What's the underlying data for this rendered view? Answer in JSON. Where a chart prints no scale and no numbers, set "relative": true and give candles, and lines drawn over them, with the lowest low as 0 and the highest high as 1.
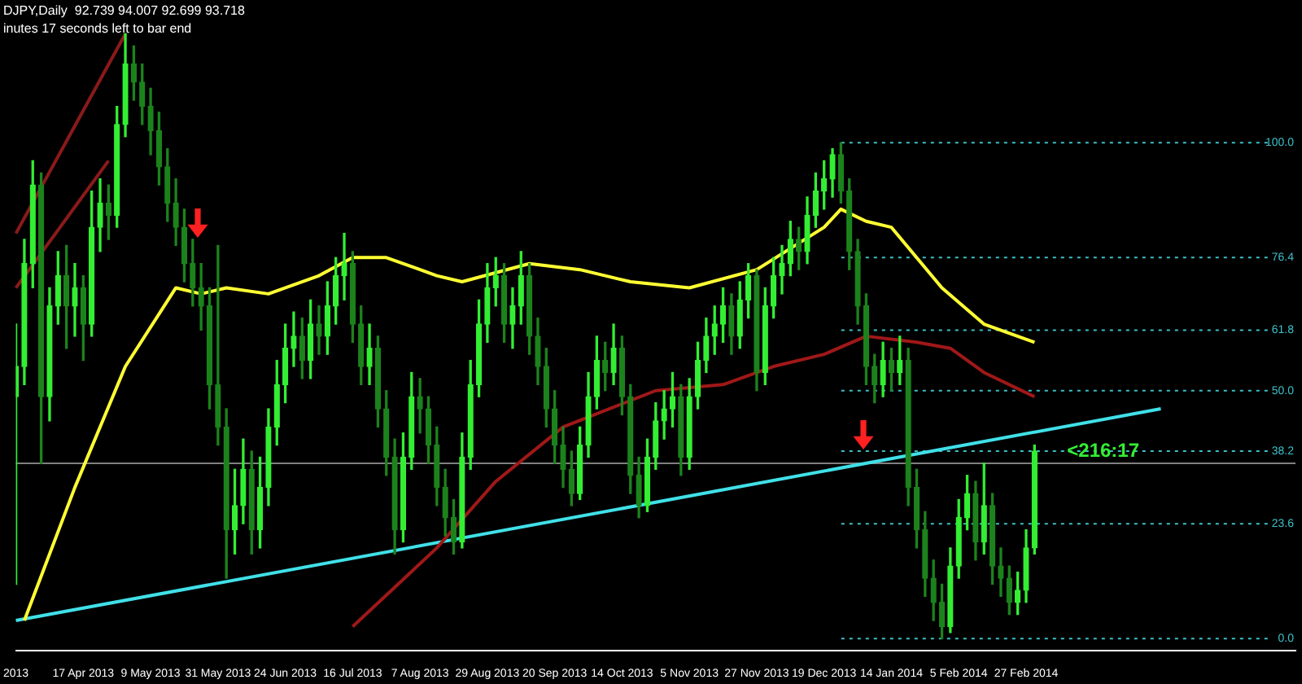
{
  "chart_data": {
    "type": "candlestick",
    "title": "DJPY,Daily  92.739 94.007 92.699 93.718",
    "relative": true,
    "colors": [
      "#33ee33",
      "#33ee33",
      "#33ee33",
      "#1c831c",
      "#33ee33",
      "#33ee33",
      "#1c831c",
      "#33ee33",
      "#1c831c",
      "#33ee33",
      "#33ee33",
      "#1c831c",
      "#33ee33",
      "#33ee33",
      "#1c831c",
      "#1c831c",
      "#1c831c",
      "#1c831c",
      "#1c831c",
      "#1c831c",
      "#1c831c",
      "#1c831c",
      "#1c831c",
      "#1c831c",
      "#1c831c",
      "#1c831c",
      "#33ee33",
      "#33ee33",
      "#1c831c",
      "#33ee33",
      "#33ee33",
      "#33ee33",
      "#33ee33",
      "#33ee33",
      "#1c831c",
      "#33ee33",
      "#1c831c",
      "#33ee33",
      "#33ee33",
      "#33ee33",
      "#1c831c",
      "#1c831c",
      "#33ee33",
      "#1c831c",
      "#1c831c",
      "#1c831c",
      "#33ee33",
      "#33ee33",
      "#1c831c",
      "#1c831c",
      "#1c831c",
      "#1c831c",
      "#1c831c",
      "#33ee33",
      "#33ee33",
      "#33ee33",
      "#33ee33",
      "#33ee33",
      "#1c831c",
      "#33ee33",
      "#33ee33",
      "#1c831c",
      "#1c831c",
      "#1c831c",
      "#1c831c",
      "#1c831c",
      "#1c831c",
      "#33ee33",
      "#33ee33",
      "#33ee33",
      "#1c831c",
      "#33ee33",
      "#1c831c",
      "#1c831c",
      "#1c831c",
      "#33ee33",
      "#33ee33",
      "#33ee33",
      "#33ee33",
      "#1c831c",
      "#33ee33",
      "#33ee33",
      "#33ee33",
      "#33ee33",
      "#33ee33",
      "#1c831c",
      "#33ee33",
      "#33ee33",
      "#1c831c",
      "#33ee33",
      "#33ee33",
      "#33ee33",
      "#33ee33",
      "#1c831c",
      "#33ee33",
      "#33ee33",
      "#33ee33",
      "#33ee33",
      "#1c831c",
      "#1c831c",
      "#1c831c",
      "#1c831c",
      "#1c831c",
      "#33ee33",
      "#1c831c",
      "#33ee33",
      "#1c831c",
      "#1c831c",
      "#1c831c",
      "#1c831c",
      "#1c831c",
      "#33ee33",
      "#33ee33",
      "#33ee33",
      "#1c831c",
      "#33ee33",
      "#1c831c",
      "#1c831c",
      "#1c831c",
      "#33ee33",
      "#33ee33",
      "#33ee33",
      null,
      null,
      null,
      null,
      null,
      null,
      null,
      null,
      null,
      null,
      null,
      null,
      null,
      null,
      null,
      null,
      null,
      null,
      null,
      null,
      null,
      null,
      null,
      null,
      null,
      null,
      null,
      null,
      null,
      null,
      null
    ],
    "annotations": [
      "inutes 17 seconds left to bar end",
      "<216:17",
      "100.0",
      "76.4",
      "61.8",
      "50.0",
      "38.2",
      "23.6",
      "0.0"
    ],
    "categories": [
      "2013",
      null,
      null,
      null,
      null,
      null,
      null,
      null,
      "17 Apr 2013",
      null,
      null,
      null,
      null,
      null,
      null,
      null,
      "9 May 2013",
      null,
      null,
      null,
      null,
      null,
      null,
      null,
      "31 May 2013",
      null,
      null,
      null,
      null,
      null,
      null,
      null,
      "24 Jun 2013",
      null,
      null,
      null,
      null,
      null,
      null,
      null,
      "16 Jul 2013",
      null,
      null,
      null,
      null,
      null,
      null,
      null,
      "7 Aug 2013",
      null,
      null,
      null,
      null,
      null,
      null,
      null,
      "29 Aug 2013",
      null,
      null,
      null,
      null,
      null,
      null,
      null,
      "20 Sep 2013",
      null,
      null,
      null,
      null,
      null,
      null,
      null,
      "14 Oct 2013",
      null,
      null,
      null,
      null,
      null,
      null,
      null,
      "5 Nov 2013",
      null,
      null,
      null,
      null,
      null,
      null,
      null,
      "27 Nov 2013",
      null,
      null,
      null,
      null,
      null,
      null,
      null,
      "19 Dec 2013",
      null,
      null,
      null,
      null,
      null,
      null,
      null,
      "14 Jan 2014",
      null,
      null,
      null,
      null,
      null,
      null,
      null,
      "5 Feb 2014",
      null,
      null,
      null,
      null,
      null,
      null,
      null,
      "27 Feb 2014",
      null,
      null,
      null,
      null,
      null,
      null,
      null,
      null,
      null,
      null,
      null,
      null,
      null,
      null,
      null,
      null,
      null,
      null,
      null,
      null,
      null,
      null,
      null,
      null,
      null,
      null,
      null,
      null,
      null,
      null,
      null,
      null
    ],
    "ohlc": [
      [
        0.4,
        0.52,
        0.09,
        0.45
      ],
      [
        0.45,
        0.66,
        0.42,
        0.62
      ],
      [
        0.62,
        0.79,
        0.58,
        0.75
      ],
      [
        0.75,
        0.77,
        0.29,
        0.4
      ],
      [
        0.4,
        0.58,
        0.36,
        0.55
      ],
      [
        0.55,
        0.64,
        0.52,
        0.6
      ],
      [
        0.6,
        0.65,
        0.48,
        0.55
      ],
      [
        0.55,
        0.62,
        0.5,
        0.58
      ],
      [
        0.58,
        0.6,
        0.46,
        0.52
      ],
      [
        0.52,
        0.74,
        0.5,
        0.68
      ],
      [
        0.68,
        0.76,
        0.64,
        0.72
      ],
      [
        0.72,
        0.75,
        0.66,
        0.7
      ],
      [
        0.7,
        0.88,
        0.68,
        0.85
      ],
      [
        0.85,
        1.0,
        0.83,
        0.95
      ],
      [
        0.95,
        0.98,
        0.89,
        0.92
      ],
      [
        0.92,
        0.95,
        0.85,
        0.88
      ],
      [
        0.88,
        0.91,
        0.8,
        0.84
      ],
      [
        0.84,
        0.87,
        0.75,
        0.78
      ],
      [
        0.78,
        0.81,
        0.69,
        0.72
      ],
      [
        0.72,
        0.76,
        0.65,
        0.68
      ],
      [
        0.68,
        0.71,
        0.59,
        0.62
      ],
      [
        0.62,
        0.66,
        0.55,
        0.58
      ],
      [
        0.58,
        0.62,
        0.51,
        0.55
      ],
      [
        0.55,
        0.58,
        0.38,
        0.42
      ],
      [
        0.42,
        0.65,
        0.32,
        0.35
      ],
      [
        0.35,
        0.38,
        0.1,
        0.18
      ],
      [
        0.18,
        0.28,
        0.14,
        0.22
      ],
      [
        0.22,
        0.33,
        0.19,
        0.28
      ],
      [
        0.28,
        0.31,
        0.14,
        0.18
      ],
      [
        0.18,
        0.3,
        0.15,
        0.25
      ],
      [
        0.25,
        0.38,
        0.22,
        0.35
      ],
      [
        0.35,
        0.46,
        0.32,
        0.42
      ],
      [
        0.42,
        0.52,
        0.39,
        0.48
      ],
      [
        0.48,
        0.54,
        0.45,
        0.5
      ],
      [
        0.5,
        0.53,
        0.43,
        0.46
      ],
      [
        0.46,
        0.56,
        0.43,
        0.52
      ],
      [
        0.52,
        0.55,
        0.47,
        0.5
      ],
      [
        0.5,
        0.59,
        0.47,
        0.55
      ],
      [
        0.55,
        0.63,
        0.52,
        0.6
      ],
      [
        0.6,
        0.67,
        0.56,
        0.62
      ],
      [
        0.62,
        0.64,
        0.49,
        0.52
      ],
      [
        0.52,
        0.55,
        0.42,
        0.45
      ],
      [
        0.45,
        0.52,
        0.42,
        0.48
      ],
      [
        0.48,
        0.5,
        0.35,
        0.38
      ],
      [
        0.38,
        0.41,
        0.27,
        0.3
      ],
      [
        0.3,
        0.33,
        0.14,
        0.18
      ],
      [
        0.18,
        0.34,
        0.16,
        0.3
      ],
      [
        0.3,
        0.44,
        0.28,
        0.4
      ],
      [
        0.4,
        0.43,
        0.34,
        0.38
      ],
      [
        0.38,
        0.4,
        0.29,
        0.32
      ],
      [
        0.32,
        0.35,
        0.22,
        0.25
      ],
      [
        0.25,
        0.28,
        0.17,
        0.2
      ],
      [
        0.2,
        0.23,
        0.14,
        0.16
      ],
      [
        0.16,
        0.34,
        0.15,
        0.3
      ],
      [
        0.3,
        0.46,
        0.28,
        0.42
      ],
      [
        0.42,
        0.56,
        0.4,
        0.52
      ],
      [
        0.52,
        0.62,
        0.49,
        0.58
      ],
      [
        0.58,
        0.63,
        0.55,
        0.6
      ],
      [
        0.6,
        0.62,
        0.49,
        0.52
      ],
      [
        0.52,
        0.58,
        0.48,
        0.55
      ],
      [
        0.55,
        0.64,
        0.52,
        0.6
      ],
      [
        0.6,
        0.62,
        0.47,
        0.5
      ],
      [
        0.5,
        0.53,
        0.42,
        0.45
      ],
      [
        0.45,
        0.48,
        0.35,
        0.38
      ],
      [
        0.38,
        0.41,
        0.29,
        0.32
      ],
      [
        0.32,
        0.35,
        0.25,
        0.28
      ],
      [
        0.28,
        0.31,
        0.22,
        0.24
      ],
      [
        0.24,
        0.35,
        0.23,
        0.32
      ],
      [
        0.32,
        0.44,
        0.3,
        0.4
      ],
      [
        0.4,
        0.5,
        0.38,
        0.46
      ],
      [
        0.46,
        0.49,
        0.41,
        0.44
      ],
      [
        0.44,
        0.52,
        0.42,
        0.48
      ],
      [
        0.48,
        0.5,
        0.37,
        0.4
      ],
      [
        0.4,
        0.42,
        0.24,
        0.27
      ],
      [
        0.27,
        0.3,
        0.2,
        0.22
      ],
      [
        0.22,
        0.33,
        0.21,
        0.3
      ],
      [
        0.3,
        0.39,
        0.28,
        0.36
      ],
      [
        0.36,
        0.41,
        0.33,
        0.38
      ],
      [
        0.38,
        0.44,
        0.35,
        0.4
      ],
      [
        0.4,
        0.42,
        0.27,
        0.3
      ],
      [
        0.3,
        0.43,
        0.28,
        0.4
      ],
      [
        0.4,
        0.49,
        0.38,
        0.46
      ],
      [
        0.46,
        0.53,
        0.44,
        0.5
      ],
      [
        0.5,
        0.55,
        0.47,
        0.52
      ],
      [
        0.52,
        0.58,
        0.49,
        0.55
      ],
      [
        0.55,
        0.57,
        0.47,
        0.5
      ],
      [
        0.5,
        0.59,
        0.48,
        0.56
      ],
      [
        0.56,
        0.62,
        0.53,
        0.6
      ],
      [
        0.6,
        0.61,
        0.41,
        0.44
      ],
      [
        0.44,
        0.58,
        0.42,
        0.55
      ],
      [
        0.55,
        0.63,
        0.53,
        0.6
      ],
      [
        0.6,
        0.65,
        0.57,
        0.62
      ],
      [
        0.62,
        0.69,
        0.6,
        0.66
      ],
      [
        0.66,
        0.68,
        0.61,
        0.64
      ],
      [
        0.64,
        0.73,
        0.62,
        0.7
      ],
      [
        0.7,
        0.77,
        0.68,
        0.74
      ],
      [
        0.74,
        0.79,
        0.71,
        0.76
      ],
      [
        0.76,
        0.81,
        0.73,
        0.8
      ],
      [
        0.8,
        0.82,
        0.72,
        0.74
      ],
      [
        0.74,
        0.76,
        0.61,
        0.64
      ],
      [
        0.64,
        0.66,
        0.52,
        0.55
      ],
      [
        0.55,
        0.57,
        0.42,
        0.45
      ],
      [
        0.45,
        0.47,
        0.39,
        0.42
      ],
      [
        0.42,
        0.49,
        0.4,
        0.46
      ],
      [
        0.46,
        0.48,
        0.41,
        0.44
      ],
      [
        0.44,
        0.5,
        0.42,
        0.46
      ],
      [
        0.46,
        0.48,
        0.22,
        0.25
      ],
      [
        0.25,
        0.28,
        0.15,
        0.18
      ],
      [
        0.18,
        0.21,
        0.07,
        0.1
      ],
      [
        0.1,
        0.13,
        0.03,
        0.06
      ],
      [
        0.06,
        0.09,
        0.0,
        0.02
      ],
      [
        0.02,
        0.15,
        0.01,
        0.12
      ],
      [
        0.12,
        0.23,
        0.1,
        0.2
      ],
      [
        0.2,
        0.27,
        0.18,
        0.24
      ],
      [
        0.24,
        0.26,
        0.13,
        0.16
      ],
      [
        0.16,
        0.29,
        0.14,
        0.22
      ],
      [
        0.22,
        0.24,
        0.09,
        0.12
      ],
      [
        0.12,
        0.15,
        0.07,
        0.1
      ],
      [
        0.1,
        0.12,
        0.04,
        0.06
      ],
      [
        0.06,
        0.11,
        0.04,
        0.08
      ],
      [
        0.08,
        0.18,
        0.06,
        0.15
      ],
      [
        0.15,
        0.32,
        0.14,
        0.31
      ],
      null,
      null,
      null,
      null,
      null,
      null,
      null,
      null,
      null,
      null,
      null,
      null,
      null,
      null,
      null,
      null,
      null,
      null,
      null,
      null,
      null,
      null,
      null,
      null,
      null,
      null,
      null,
      null,
      null,
      null,
      null
    ],
    "series": [
      {
        "type": "line",
        "color": "#ffff33",
        "values": [
          null,
          0.03,
          null,
          null,
          null,
          null,
          null,
          0.25,
          null,
          null,
          null,
          null,
          null,
          0.45,
          null,
          null,
          null,
          null,
          null,
          0.58,
          null,
          null,
          0.57,
          null,
          null,
          0.58,
          null,
          null,
          null,
          null,
          0.57,
          null,
          null,
          null,
          null,
          null,
          0.6,
          null,
          null,
          null,
          0.63,
          null,
          null,
          null,
          0.63,
          null,
          null,
          null,
          null,
          null,
          0.6,
          null,
          null,
          0.59,
          null,
          null,
          null,
          null,
          null,
          null,
          null,
          0.62,
          null,
          null,
          null,
          null,
          null,
          0.61,
          null,
          null,
          null,
          null,
          null,
          0.59,
          null,
          null,
          null,
          null,
          null,
          null,
          0.58,
          null,
          null,
          null,
          null,
          null,
          null,
          null,
          0.61,
          null,
          null,
          null,
          null,
          null,
          null,
          null,
          0.68,
          null,
          0.71,
          null,
          null,
          0.69,
          null,
          null,
          0.68,
          null,
          null,
          null,
          null,
          null,
          0.58,
          null,
          null,
          null,
          null,
          0.52,
          null,
          null,
          null,
          null,
          null,
          0.49,
          null,
          null,
          null,
          null,
          null,
          null,
          null,
          null,
          null,
          null,
          null,
          null,
          null,
          null,
          null,
          null,
          null,
          null,
          null,
          null,
          null,
          null,
          null,
          null,
          null,
          null,
          null,
          null,
          null,
          null,
          null
        ]
      },
      {
        "type": "line",
        "color": "#a01818",
        "values": [
          null,
          null,
          null,
          null,
          null,
          null,
          null,
          null,
          null,
          null,
          null,
          null,
          null,
          null,
          null,
          null,
          null,
          null,
          null,
          null,
          null,
          null,
          null,
          null,
          null,
          null,
          null,
          null,
          null,
          null,
          null,
          null,
          null,
          null,
          null,
          null,
          null,
          null,
          null,
          null,
          0.02,
          null,
          null,
          null,
          null,
          null,
          null,
          null,
          null,
          null,
          0.15,
          null,
          null,
          null,
          null,
          null,
          null,
          0.26,
          null,
          null,
          null,
          null,
          null,
          null,
          null,
          0.35,
          null,
          null,
          null,
          null,
          null,
          null,
          null,
          null,
          null,
          null,
          0.41,
          null,
          null,
          null,
          null,
          null,
          null,
          null,
          0.42,
          null,
          null,
          null,
          null,
          null,
          0.45,
          null,
          null,
          null,
          null,
          null,
          0.47,
          null,
          null,
          null,
          null,
          0.5,
          null,
          null,
          null,
          null,
          null,
          0.49,
          null,
          null,
          null,
          0.48,
          null,
          null,
          null,
          0.44,
          null,
          null,
          null,
          null,
          null,
          0.4,
          null,
          null,
          null,
          null,
          null,
          null,
          null,
          null,
          null,
          null,
          null,
          null,
          null,
          null,
          null,
          null,
          null,
          null,
          null,
          null,
          null,
          null,
          null,
          null,
          null,
          null,
          null,
          null,
          null,
          null,
          null
        ]
      },
      {
        "type": "line",
        "color": "#8b1a1a",
        "values": [
          0.67,
          null,
          null,
          null,
          null,
          null,
          null,
          null,
          null,
          null,
          null,
          null,
          null,
          1.0,
          null,
          null,
          null,
          null,
          null,
          null,
          null,
          null,
          null,
          null,
          null,
          null,
          null,
          null,
          null,
          null,
          null,
          null,
          null,
          null,
          null,
          null,
          null,
          null,
          null,
          null,
          null,
          null,
          null,
          null,
          null,
          null,
          null,
          null,
          null,
          null,
          null,
          null,
          null,
          null,
          null,
          null,
          null,
          null,
          null,
          null,
          null,
          null,
          null,
          null,
          null,
          null,
          null,
          null,
          null,
          null,
          null,
          null,
          null,
          null,
          null,
          null,
          null,
          null,
          null,
          null,
          null,
          null,
          null,
          null,
          null,
          null,
          null,
          null,
          null,
          null,
          null,
          null,
          null,
          null,
          null,
          null,
          null,
          null,
          null,
          null,
          null,
          null,
          null,
          null,
          null,
          null,
          null,
          null,
          null,
          null,
          null,
          null,
          null,
          null,
          null,
          null,
          null,
          null,
          null,
          null,
          null,
          null,
          null,
          null,
          null,
          null,
          null,
          null,
          null,
          null,
          null,
          null,
          null,
          null,
          null,
          null,
          null,
          null,
          null,
          null,
          null,
          null,
          null,
          null,
          null,
          null,
          null,
          null,
          null,
          null,
          null,
          null,
          null
        ]
      },
      {
        "type": "line",
        "color": "#8b1a1a",
        "values": [
          0.58,
          null,
          null,
          null,
          null,
          null,
          null,
          null,
          null,
          null,
          null,
          0.79,
          null,
          null,
          null,
          null,
          null,
          null,
          null,
          null,
          null,
          null,
          null,
          null,
          null,
          null,
          null,
          null,
          null,
          null,
          null,
          null,
          null,
          null,
          null,
          null,
          null,
          null,
          null,
          null,
          null,
          null,
          null,
          null,
          null,
          null,
          null,
          null,
          null,
          null,
          null,
          null,
          null,
          null,
          null,
          null,
          null,
          null,
          null,
          null,
          null,
          null,
          null,
          null,
          null,
          null,
          null,
          null,
          null,
          null,
          null,
          null,
          null,
          null,
          null,
          null,
          null,
          null,
          null,
          null,
          null,
          null,
          null,
          null,
          null,
          null,
          null,
          null,
          null,
          null,
          null,
          null,
          null,
          null,
          null,
          null,
          null,
          null,
          null,
          null,
          null,
          null,
          null,
          null,
          null,
          null,
          null,
          null,
          null,
          null,
          null,
          null,
          null,
          null,
          null,
          null,
          null,
          null,
          null,
          null,
          null,
          null,
          null,
          null,
          null,
          null,
          null,
          null,
          null,
          null,
          null,
          null,
          null,
          null,
          null,
          null,
          null,
          null,
          null,
          null,
          null,
          null,
          null,
          null,
          null,
          null,
          null,
          null,
          null,
          null,
          null,
          null,
          null
        ]
      },
      {
        "type": "line",
        "color": "#40e0e8",
        "values": [
          0.03,
          null,
          null,
          null,
          null,
          null,
          null,
          null,
          null,
          null,
          null,
          null,
          null,
          null,
          null,
          null,
          null,
          null,
          null,
          null,
          null,
          null,
          null,
          null,
          null,
          null,
          null,
          null,
          null,
          null,
          null,
          null,
          null,
          null,
          null,
          null,
          null,
          null,
          null,
          null,
          null,
          null,
          null,
          null,
          null,
          null,
          null,
          null,
          null,
          null,
          null,
          null,
          null,
          null,
          null,
          null,
          null,
          null,
          null,
          null,
          null,
          null,
          null,
          null,
          null,
          null,
          null,
          null,
          null,
          null,
          null,
          null,
          null,
          null,
          null,
          null,
          null,
          null,
          null,
          null,
          null,
          null,
          null,
          null,
          null,
          null,
          null,
          null,
          null,
          null,
          null,
          null,
          null,
          null,
          null,
          null,
          null,
          null,
          null,
          null,
          null,
          null,
          null,
          null,
          null,
          null,
          null,
          null,
          null,
          null,
          null,
          null,
          null,
          null,
          null,
          null,
          null,
          null,
          null,
          null,
          null,
          null,
          null,
          null,
          null,
          null,
          null,
          null,
          null,
          null,
          null,
          null,
          null,
          null,
          null,
          null,
          0.38,
          null,
          null,
          null,
          null,
          null,
          null,
          null,
          null,
          null,
          null,
          null,
          null,
          null,
          null,
          null,
          null
        ]
      }
    ],
    "ref_lines": [
      {
        "axis": "y",
        "value": 0.82,
        "color": "#3cc0c8",
        "line_style": "dotted"
      },
      {
        "axis": "y",
        "value": 0.63,
        "color": "#3cc0c8",
        "line_style": "dotted"
      },
      {
        "axis": "y",
        "value": 0.51,
        "color": "#3cc0c8",
        "line_style": "dotted"
      },
      {
        "axis": "y",
        "value": 0.41,
        "color": "#3cc0c8",
        "line_style": "dotted"
      },
      {
        "axis": "y",
        "value": 0.31,
        "color": "#3cc0c8",
        "line_style": "dotted"
      },
      {
        "axis": "y",
        "value": 0.19,
        "color": "#3cc0c8",
        "line_style": "dotted"
      },
      {
        "axis": "y",
        "value": 0,
        "color": "#3cc0c8",
        "line_style": "dotted"
      },
      {
        "axis": "y",
        "value": 0.29,
        "color": "#808080",
        "line_style": "solid"
      }
    ]
  }
}
